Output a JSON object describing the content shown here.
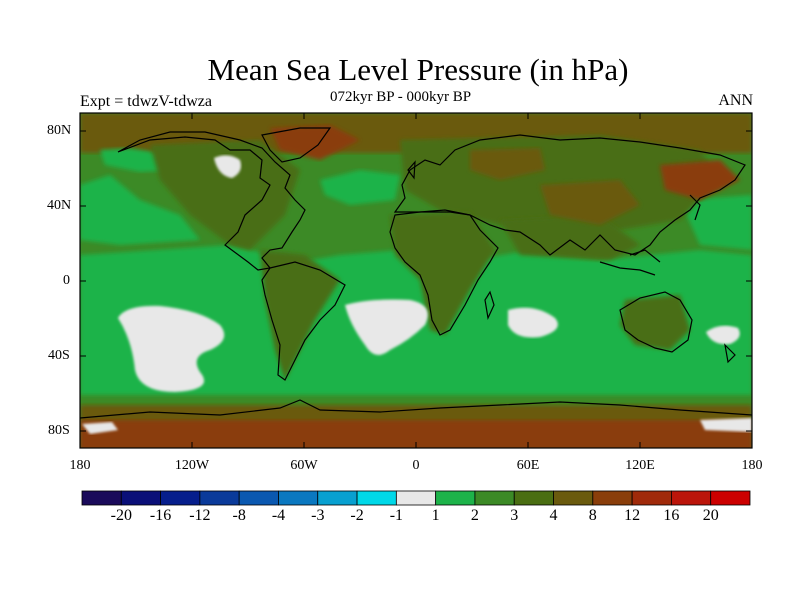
{
  "title": "Mean Sea Level Pressure (in hPa)",
  "subtitle": "072kyr BP - 000kyr BP",
  "left_label": "Expt = tdwzV-tdwza",
  "right_label": "ANN",
  "lat_labels": [
    "80N",
    "40N",
    "0",
    "40S",
    "80S"
  ],
  "lon_labels": [
    "180",
    "120W",
    "60W",
    "0",
    "60E",
    "120E",
    "180"
  ],
  "colorbar": {
    "colors": [
      "#1a0a5a",
      "#0a0f78",
      "#061e8c",
      "#0a3a9a",
      "#0a58b0",
      "#0a78c0",
      "#08a0d0",
      "#00d8e8",
      "#e8e8e8",
      "#1db34a",
      "#3c8a26",
      "#4a6e12",
      "#6a5a0e",
      "#8a3e0a",
      "#a02a0a",
      "#bb150a",
      "#cc0000"
    ],
    "labels": [
      "-20",
      "-16",
      "-12",
      "-8",
      "-4",
      "-3",
      "-2",
      "-1",
      "1",
      "2",
      "3",
      "4",
      "8",
      "12",
      "16",
      "20"
    ]
  },
  "chart_data": {
    "type": "heatmap",
    "title": "Mean Sea Level Pressure (in hPa)",
    "subtitle": "072kyr BP - 000kyr BP",
    "experiment": "Expt = tdwzV-tdwza",
    "season": "ANN",
    "units": "hPa",
    "x_ticks": [
      "180",
      "120W",
      "60W",
      "0",
      "60E",
      "120E",
      "180"
    ],
    "y_ticks": [
      "80N",
      "40N",
      "0",
      "40S",
      "80S"
    ],
    "levels": [
      -20,
      -16,
      -12,
      -8,
      -4,
      -3,
      -2,
      -1,
      1,
      2,
      3,
      4,
      8,
      12,
      16,
      20
    ],
    "dominant_fields": [
      {
        "region": "Southern Ocean band",
        "range": "1 to 2"
      },
      {
        "region": "Tropical and subtropical oceans",
        "range": "1 to 3"
      },
      {
        "region": "Continents (N. America, Eurasia, Africa, Australia, S. America)",
        "range": "3 to 8"
      },
      {
        "region": "Tibet / Himalaya, Greenland coast, Antarctica",
        "range": "8 to 16"
      },
      {
        "region": "South Pacific, South Atlantic, South Indian, Tasman Sea, Hudson Bay",
        "range": "-1 to 1"
      }
    ]
  }
}
